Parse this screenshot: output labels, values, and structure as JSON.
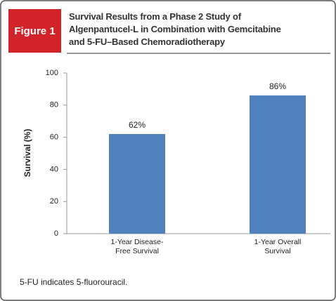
{
  "figure_label": "Figure 1",
  "chart_data": {
    "type": "bar",
    "title": [
      "Survival Results from a Phase 2 Study of",
      "Algenpantucel-L in Combination with Gemcitabine",
      "and 5-FU–Based Chemoradiotherapy"
    ],
    "y_label": "Survival (%)",
    "categories": [
      "1-Year Disease-Free Survival",
      "1-Year Overall Survival"
    ],
    "values": [
      62,
      86
    ],
    "value_labels": [
      "62%",
      "86%"
    ],
    "color": "#4f81bd",
    "ylim": [
      0,
      100
    ],
    "yticks": [
      0,
      20,
      40,
      60,
      80,
      100
    ]
  },
  "footnote": "5-FU indicates 5-fluorouracil."
}
